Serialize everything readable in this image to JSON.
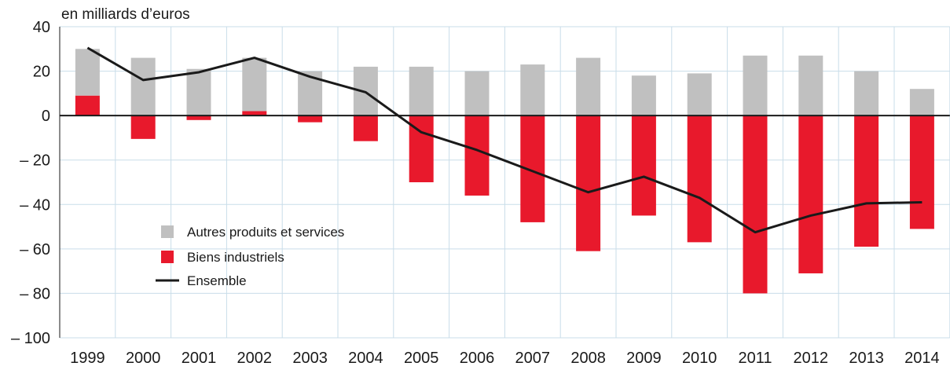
{
  "chart_data": {
    "type": "bar",
    "unit_label": "en milliards d’euros",
    "categories": [
      "1999",
      "2000",
      "2001",
      "2002",
      "2003",
      "2004",
      "2005",
      "2006",
      "2007",
      "2008",
      "2009",
      "2010",
      "2011",
      "2012",
      "2013",
      "2014"
    ],
    "series": [
      {
        "name": "Autres produits et services",
        "type": "bar",
        "color": "#c0c0c0",
        "values": [
          21,
          26,
          21,
          24,
          20,
          22,
          22,
          20,
          23,
          26,
          18,
          19,
          27,
          27,
          20,
          12
        ]
      },
      {
        "name": "Biens industriels",
        "type": "bar",
        "color": "#e8192c",
        "values": [
          9,
          -10.5,
          -2,
          2,
          -3,
          -11.5,
          -30,
          -36,
          -48,
          -61,
          -45,
          -57,
          -80,
          -71,
          -59,
          -51
        ]
      },
      {
        "name": "Ensemble",
        "type": "line",
        "color": "#1a1a1a",
        "values": [
          30.5,
          16,
          19.5,
          26,
          17.5,
          10.5,
          -7.5,
          -15.5,
          -25,
          -34.5,
          -27.5,
          -37,
          -52.5,
          -45,
          -39.5,
          -39
        ]
      }
    ],
    "ylim": [
      -100,
      40
    ],
    "yticks": [
      40,
      20,
      0,
      -20,
      -40,
      -60,
      -80,
      -100
    ],
    "ytick_labels": [
      "40",
      "20",
      "0",
      "– 20",
      "– 40",
      "– 60",
      "– 80",
      "– 100"
    ],
    "grid": true,
    "legend_position": "bottom-left"
  }
}
